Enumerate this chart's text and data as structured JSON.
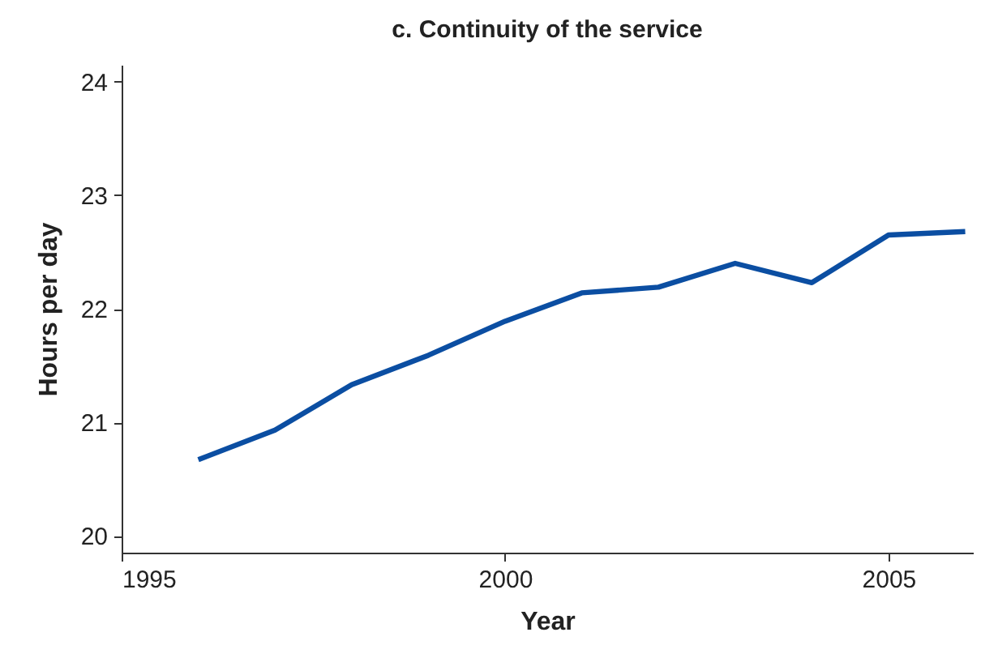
{
  "chart_data": {
    "type": "line",
    "title": "c. Continuity of the service",
    "xlabel": "Year",
    "ylabel": "Hours per day",
    "x": [
      1996,
      1997,
      1998,
      1999,
      2000,
      2001,
      2002,
      2003,
      2004,
      2005,
      2006
    ],
    "series": [
      {
        "color": "#0b4ea2",
        "values": [
          20.67,
          20.93,
          21.33,
          21.59,
          21.89,
          22.14,
          22.19,
          22.4,
          22.23,
          22.65,
          22.68
        ]
      }
    ],
    "xlim": [
      1995,
      2006.1
    ],
    "xticks": [
      1995,
      2000,
      2005
    ],
    "ylim": [
      19.85,
      24.15
    ],
    "yticks": [
      20,
      21,
      22,
      23,
      24
    ],
    "grid": false,
    "legend": false,
    "line_style": "solid",
    "marker": "none"
  }
}
